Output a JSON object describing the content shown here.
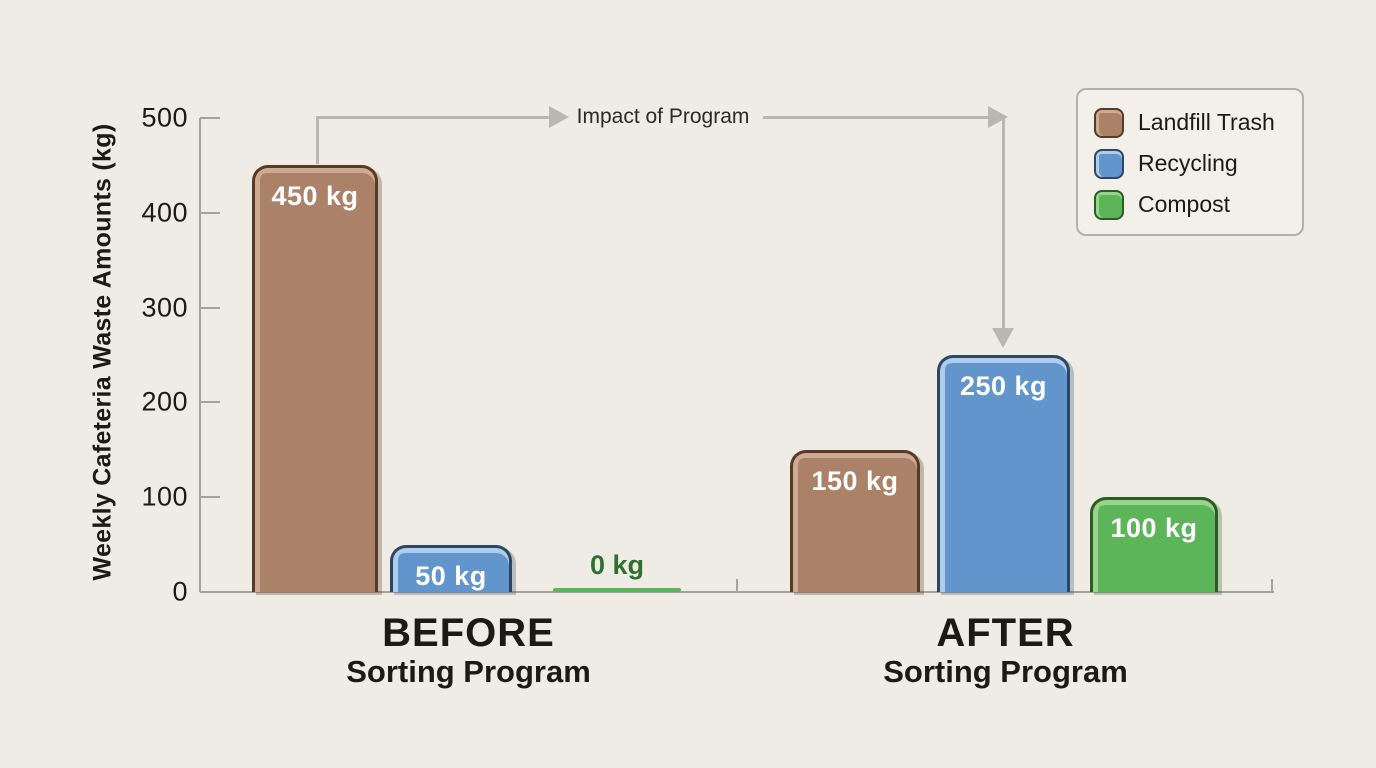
{
  "colors": {
    "background": "#efebe5",
    "axis": "#a5a29c",
    "ink": "#1b1a17",
    "arrow": "#bab7b1",
    "legend_border": "#b3b0aa",
    "legend_bg": "#f3f0ea",
    "bar_label": "#ffffff",
    "zero_label": "#2e7030"
  },
  "chart_data": {
    "type": "bar",
    "title": "",
    "ylabel": "Weekly Cafeteria Waste Amounts (kg)",
    "ylim": [
      0,
      500
    ],
    "yticks": [
      0,
      100,
      200,
      300,
      400,
      500
    ],
    "grid": false,
    "legend_position": "top-right",
    "annotation": "Impact of Program",
    "groups": [
      {
        "main": "BEFORE",
        "sub": "Sorting Program"
      },
      {
        "main": "AFTER",
        "sub": "Sorting Program"
      }
    ],
    "series": [
      {
        "name": "Landfill Trash",
        "values": [
          450,
          150
        ],
        "fill": "#ab8168",
        "border": "#573a27",
        "highlight": "#cdab93",
        "shadow": "rgba(87,58,39,0.30)"
      },
      {
        "name": "Recycling",
        "values": [
          50,
          250
        ],
        "fill": "#6295cc",
        "border": "#2c4763",
        "highlight": "#aecdea",
        "shadow": "rgba(44,71,99,0.28)"
      },
      {
        "name": "Compost",
        "values": [
          0,
          100
        ],
        "fill": "#5db55a",
        "border": "#2b5d20",
        "highlight": "#9ad390",
        "shadow": "rgba(43,93,32,0.28)"
      }
    ],
    "value_labels": [
      [
        "450 kg",
        "50 kg",
        "0 kg"
      ],
      [
        "150 kg",
        "250 kg",
        "100 kg"
      ]
    ]
  },
  "legend": {
    "items": [
      {
        "label": "Landfill Trash"
      },
      {
        "label": "Recycling"
      },
      {
        "label": "Compost"
      }
    ]
  }
}
